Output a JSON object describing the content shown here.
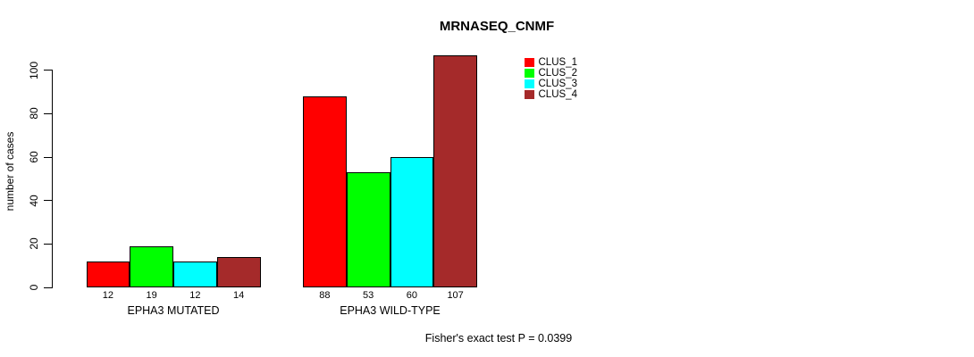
{
  "chart_data": {
    "type": "bar",
    "title": "MRNASEQ_CNMF",
    "ylabel": "number of cases",
    "categories": [
      "EPHA3 MUTATED",
      "EPHA3 WILD-TYPE"
    ],
    "series": [
      {
        "name": "CLUS_1",
        "color": "#FF0000",
        "values": [
          12,
          88
        ]
      },
      {
        "name": "CLUS_2",
        "color": "#00FF00",
        "values": [
          19,
          53
        ]
      },
      {
        "name": "CLUS_3",
        "color": "#00FFFF",
        "values": [
          12,
          60
        ]
      },
      {
        "name": "CLUS_4",
        "color": "#A52A2A",
        "values": [
          14,
          107
        ]
      }
    ],
    "ylim": [
      0,
      100
    ],
    "yticks": [
      0,
      20,
      40,
      60,
      80,
      100
    ],
    "bar_value_labels_shown": true,
    "annotation": "Fisher's exact test P = 0.0399",
    "legend_position": "top-right",
    "grid": false,
    "axis_color": "#000000",
    "text_color": "#000000",
    "background_color": "#FFFFFF"
  }
}
